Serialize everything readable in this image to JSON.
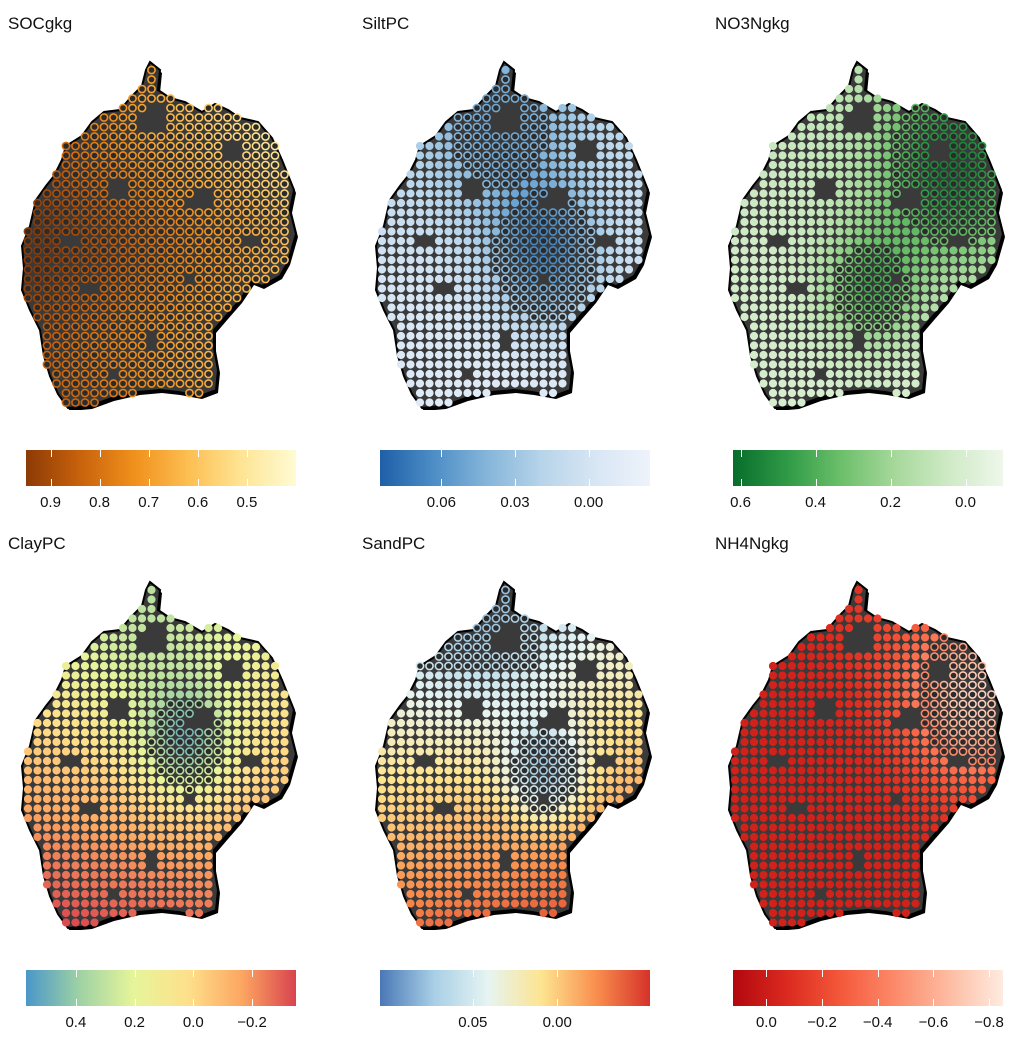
{
  "panels": [
    {
      "title": "SOCgkg",
      "colors": [
        "#8c3a06",
        "#c8620c",
        "#f0901c",
        "#fdbe52",
        "#fee595",
        "#fffbd4"
      ],
      "ticks": [
        {
          "label": "0.9",
          "value": 0.9
        },
        {
          "label": "0.8",
          "value": 0.8
        },
        {
          "label": "0.7",
          "value": 0.7
        },
        {
          "label": "0.6",
          "value": 0.6
        },
        {
          "label": "0.5",
          "value": 0.5
        }
      ],
      "range": [
        0.95,
        0.4
      ],
      "pattern": "soc"
    },
    {
      "title": "SiltPC",
      "colors": [
        "#1e5fa8",
        "#4d8ec6",
        "#86b6da",
        "#b7d4ea",
        "#d8e6f4",
        "#eef3fb"
      ],
      "ticks": [
        {
          "label": "0.06",
          "value": 0.06
        },
        {
          "label": "0.03",
          "value": 0.03
        },
        {
          "label": "0.00",
          "value": 0.0
        }
      ],
      "range": [
        0.085,
        -0.025
      ],
      "pattern": "silt"
    },
    {
      "title": "NO3Ngkg",
      "colors": [
        "#076d2b",
        "#2f9a46",
        "#6cbf6a",
        "#a6d89b",
        "#cfeac6",
        "#eef7ea"
      ],
      "ticks": [
        {
          "label": "0.6",
          "value": 0.6
        },
        {
          "label": "0.4",
          "value": 0.4
        },
        {
          "label": "0.2",
          "value": 0.2
        },
        {
          "label": "0.0",
          "value": 0.0
        }
      ],
      "range": [
        0.62,
        -0.1
      ],
      "pattern": "no3"
    },
    {
      "title": "ClayPC",
      "colors": [
        "#4a97c9",
        "#9fd2a4",
        "#e6f59a",
        "#fee08b",
        "#fca661",
        "#d9434f"
      ],
      "ticks": [
        {
          "label": "0.4",
          "value": 0.4
        },
        {
          "label": "0.2",
          "value": 0.2
        },
        {
          "label": "0.0",
          "value": 0.0
        },
        {
          "label": "−0.2",
          "value": -0.2
        }
      ],
      "range": [
        0.57,
        -0.35
      ],
      "pattern": "clay"
    },
    {
      "title": "SandPC",
      "colors": [
        "#4a78b6",
        "#a8cfe6",
        "#e6f4f2",
        "#fde48f",
        "#f98f4e",
        "#d6322a"
      ],
      "ticks": [
        {
          "label": "0.05",
          "value": 0.05
        },
        {
          "label": "0.00",
          "value": 0.0
        }
      ],
      "range": [
        0.105,
        -0.055
      ],
      "pattern": "sand"
    },
    {
      "title": "NH4Ngkg",
      "colors": [
        "#b2070e",
        "#db2a1f",
        "#f4593b",
        "#fc8a6a",
        "#fdbca2",
        "#feebe0"
      ],
      "ticks": [
        {
          "label": "0.0",
          "value": 0.0
        },
        {
          "label": "−0.2",
          "value": -0.2
        },
        {
          "label": "−0.4",
          "value": -0.4
        },
        {
          "label": "−0.6",
          "value": -0.6
        },
        {
          "label": "−0.8",
          "value": -0.8
        }
      ],
      "range": [
        0.12,
        -0.85
      ],
      "pattern": "nh4"
    }
  ]
}
